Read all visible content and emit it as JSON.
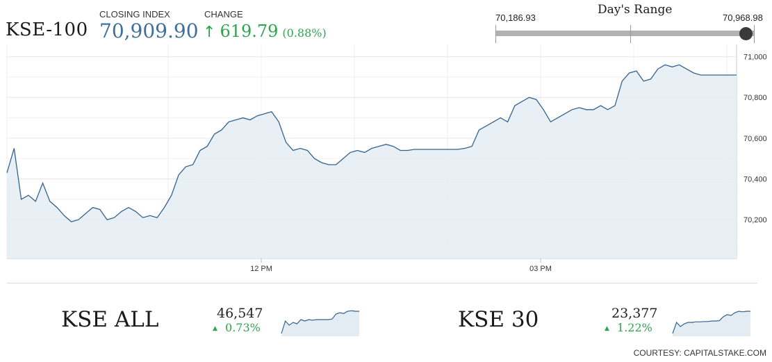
{
  "header": {
    "index_name": "KSE-100",
    "closing_caption": "CLOSING INDEX",
    "closing_value": "70,909.90",
    "change_caption": "CHANGE",
    "change_arrow": "↑",
    "change_value": "619.79",
    "change_pct": "(0.88%)",
    "up_color": "#2ea44f",
    "index_color": "#3f6f9a"
  },
  "day_range": {
    "title": "Day's Range",
    "low": "70,186.93",
    "high": "70,968.98",
    "current_position_fraction": 0.92
  },
  "chart_data": [
    {
      "type": "area",
      "x_tick_labels": [
        "12 PM",
        "03 PM"
      ],
      "y_tick_labels": [
        "70,200",
        "70,400",
        "70,600",
        "70,800",
        "71,000"
      ],
      "ylim": [
        70030,
        71060
      ],
      "grid": true,
      "line_color": "#33628f",
      "fill_color": "#e4ecf3",
      "series": [
        {
          "values": [
            70430,
            70550,
            70300,
            70320,
            70290,
            70380,
            70290,
            70260,
            70220,
            70190,
            70200,
            70230,
            70260,
            70250,
            70200,
            70210,
            70240,
            70260,
            70240,
            70210,
            70220,
            70210,
            70260,
            70320,
            70420,
            70460,
            70470,
            70540,
            70560,
            70620,
            70640,
            70680,
            70690,
            70700,
            70690,
            70710,
            70720,
            70730,
            70680,
            70580,
            70540,
            70550,
            70540,
            70500,
            70480,
            70470,
            70470,
            70500,
            70530,
            70540,
            70530,
            70550,
            70560,
            70570,
            70560,
            70540,
            70540,
            70545,
            70545,
            70545,
            70545,
            70545,
            70545,
            70545,
            70550,
            70560,
            70640,
            70660,
            70680,
            70700,
            70680,
            70760,
            70780,
            70800,
            70790,
            70740,
            70680,
            70700,
            70720,
            70740,
            70750,
            70740,
            70740,
            70760,
            70740,
            70760,
            70880,
            70920,
            70930,
            70880,
            70890,
            70940,
            70960,
            70950,
            70960,
            70940,
            70920,
            70910,
            70910,
            70910,
            70910,
            70910,
            70910
          ]
        }
      ]
    },
    {
      "type": "area",
      "name": "KSE ALL",
      "value": "46,547",
      "change": "0.73%",
      "arrow": "▲",
      "series": [
        {
          "values": [
            0.1,
            0.55,
            0.4,
            0.5,
            0.45,
            0.6,
            0.55,
            0.6,
            0.58,
            0.6,
            0.6,
            0.6,
            0.6,
            0.62,
            0.8,
            0.85,
            0.82,
            0.9,
            0.92,
            0.9,
            0.9
          ]
        }
      ]
    },
    {
      "type": "area",
      "name": "KSE 30",
      "value": "23,377",
      "change": "1.22%",
      "arrow": "▲",
      "series": [
        {
          "values": [
            0.1,
            0.5,
            0.35,
            0.45,
            0.5,
            0.5,
            0.52,
            0.52,
            0.53,
            0.53,
            0.55,
            0.55,
            0.56,
            0.7,
            0.78,
            0.75,
            0.85,
            0.9,
            0.88,
            0.9,
            0.9
          ]
        }
      ]
    }
  ],
  "footer": {
    "courtesy": "COURTESY: CAPITALSTAKE.COM"
  }
}
